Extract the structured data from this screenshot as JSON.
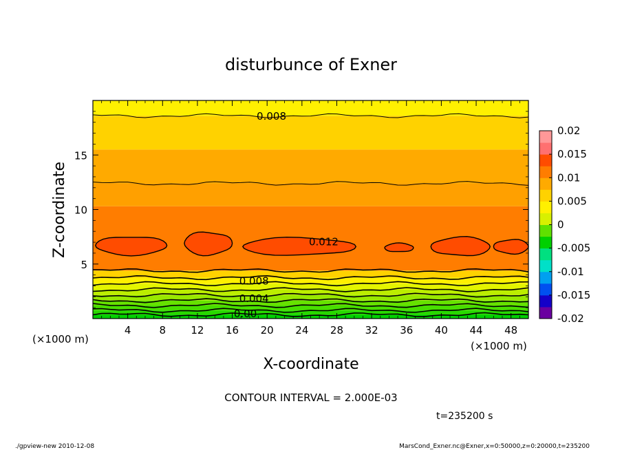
{
  "chart_data": {
    "type": "contour",
    "title": "disturbunce of Exner",
    "xlabel": "X-coordinate",
    "ylabel": "Z-coordinate",
    "x_unit": "(×1000 m)",
    "z_unit": "(×1000 m)",
    "xlim": [
      0,
      50
    ],
    "ylim": [
      0,
      20
    ],
    "x_ticks": [
      4,
      8,
      12,
      16,
      20,
      24,
      28,
      32,
      36,
      40,
      44,
      48
    ],
    "y_ticks": [
      5,
      10,
      15
    ],
    "contour_interval_text": "CONTOUR INTERVAL = 2.000E-03",
    "time_text": "t=235200 s",
    "footer_left": "./gpview-new  2010-12-08",
    "footer_right": "MarsCond_Exner.nc@Exner,x=0:50000,z=0:20000,t=235200",
    "contour_labels": [
      {
        "text": "0.008",
        "x": 20.5,
        "z": 18.6
      },
      {
        "text": "0.012",
        "x": 26.5,
        "z": 7.1
      },
      {
        "text": "0.008",
        "x": 18.5,
        "z": 3.5
      },
      {
        "text": "0.004",
        "x": 18.5,
        "z": 1.9
      },
      {
        "text": "0.00",
        "x": 17.5,
        "z": 0.5
      }
    ],
    "color_bar": {
      "labels": [
        "0.02",
        "0.015",
        "0.01",
        "0.005",
        "0",
        "-0.005",
        "-0.01",
        "-0.015",
        "-0.02"
      ],
      "range": [
        -0.02,
        0.02
      ],
      "colors": [
        "#6a00a0",
        "#1400c8",
        "#0050f0",
        "#00a0f0",
        "#00e0c8",
        "#00e080",
        "#00d000",
        "#60e000",
        "#d8f000",
        "#fff000",
        "#ffd200",
        "#ffaa00",
        "#ff7d00",
        "#ff4c00",
        "#ff7070",
        "#ff9898"
      ]
    },
    "bands": [
      {
        "z0": 0.0,
        "z1": 0.35,
        "color": "#00d000"
      },
      {
        "z0": 0.35,
        "z1": 0.75,
        "color": "#28d800"
      },
      {
        "z0": 0.75,
        "z1": 1.2,
        "color": "#48de00"
      },
      {
        "z0": 1.2,
        "z1": 1.65,
        "color": "#66e200"
      },
      {
        "z0": 1.65,
        "z1": 2.15,
        "color": "#98e800"
      },
      {
        "z0": 2.15,
        "z1": 2.65,
        "color": "#bcee00"
      },
      {
        "z0": 2.65,
        "z1": 3.2,
        "color": "#e4f400"
      },
      {
        "z0": 3.2,
        "z1": 3.75,
        "color": "#fff000"
      },
      {
        "z0": 3.75,
        "z1": 4.4,
        "color": "#ffd200"
      },
      {
        "z0": 4.4,
        "z1": 10.3,
        "color": "#ff7d00"
      },
      {
        "z0": 10.3,
        "z1": 12.4,
        "color": "#ffa000"
      },
      {
        "z0": 12.4,
        "z1": 15.5,
        "color": "#ffaa00"
      },
      {
        "z0": 15.5,
        "z1": 18.6,
        "color": "#ffd200"
      },
      {
        "z0": 18.6,
        "z1": 20.0,
        "color": "#fff000"
      }
    ],
    "contour_lines_z": [
      0.35,
      0.75,
      1.2,
      1.65,
      2.15,
      2.65,
      3.2,
      3.75,
      4.4,
      12.4,
      18.6
    ],
    "blobs": [
      {
        "x0": 0.3,
        "x1": 8.5,
        "z": 6.7,
        "h": 1.7
      },
      {
        "x0": 10.5,
        "x1": 16.0,
        "z": 6.9,
        "h": 2.1
      },
      {
        "x0": 17.2,
        "x1": 30.2,
        "z": 6.6,
        "h": 1.6
      },
      {
        "x0": 33.5,
        "x1": 36.8,
        "z": 6.5,
        "h": 0.8
      },
      {
        "x0": 38.8,
        "x1": 45.6,
        "z": 6.6,
        "h": 1.7
      },
      {
        "x0": 46.0,
        "x1": 50.0,
        "z": 6.6,
        "h": 1.3
      }
    ],
    "blob_color": "#ff4c00"
  }
}
